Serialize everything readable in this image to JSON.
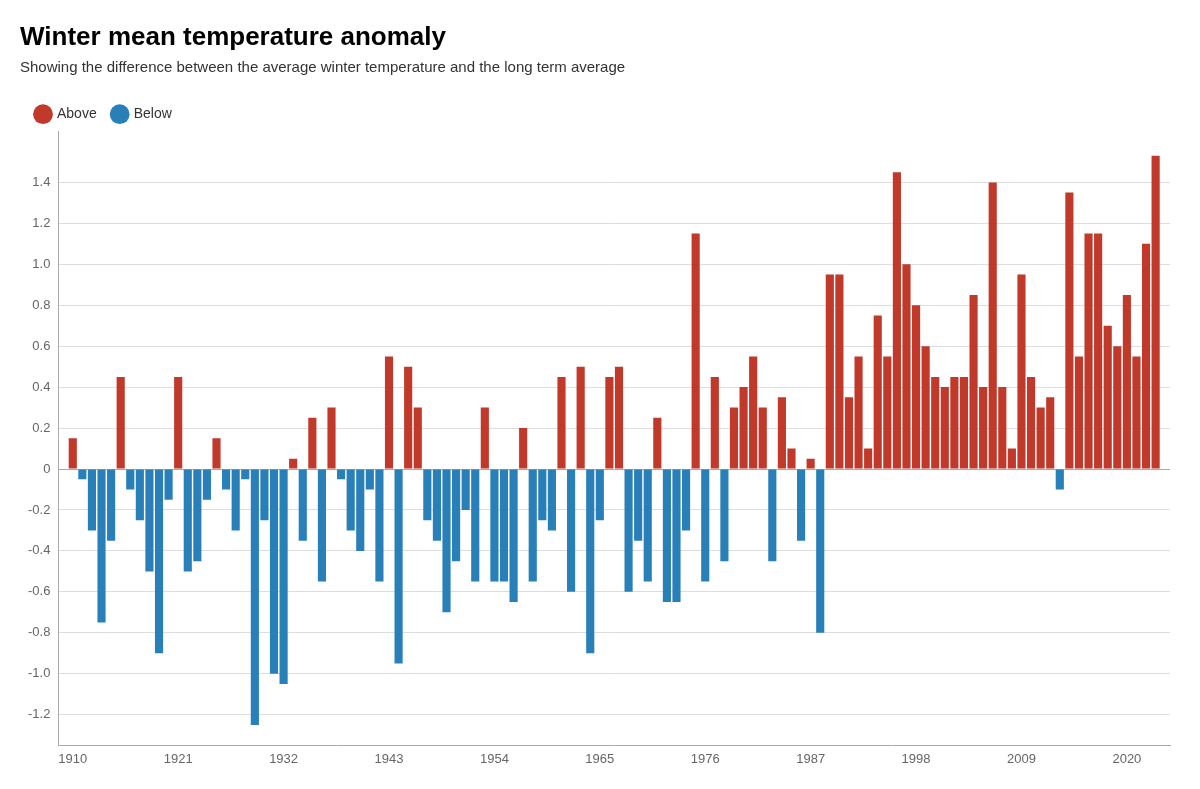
{
  "chart_data": {
    "type": "bar",
    "title": "Winter mean temperature anomaly",
    "subtitle": "Showing the difference between the average winter temperature and the long term average",
    "x": [
      1910,
      1911,
      1912,
      1913,
      1914,
      1915,
      1916,
      1917,
      1918,
      1919,
      1920,
      1921,
      1922,
      1923,
      1924,
      1925,
      1926,
      1927,
      1928,
      1929,
      1930,
      1931,
      1932,
      1933,
      1934,
      1935,
      1936,
      1937,
      1938,
      1939,
      1940,
      1941,
      1942,
      1943,
      1944,
      1945,
      1946,
      1947,
      1948,
      1949,
      1950,
      1951,
      1952,
      1953,
      1954,
      1955,
      1956,
      1957,
      1958,
      1959,
      1960,
      1961,
      1962,
      1963,
      1964,
      1965,
      1966,
      1967,
      1968,
      1969,
      1970,
      1971,
      1972,
      1973,
      1974,
      1975,
      1976,
      1977,
      1978,
      1979,
      1980,
      1981,
      1982,
      1983,
      1984,
      1985,
      1986,
      1987,
      1988,
      1989,
      1990,
      1991,
      1992,
      1993,
      1994,
      1995,
      1996,
      1997,
      1998,
      1999,
      2000,
      2001,
      2002,
      2003,
      2004,
      2005,
      2006,
      2007,
      2008,
      2009,
      2010,
      2011,
      2012,
      2013,
      2014,
      2015,
      2016,
      2017,
      2018,
      2019,
      2020,
      2021,
      2022,
      2023
    ],
    "series": [
      {
        "name": "Above",
        "color": "#c0392b",
        "values": [
          0.15,
          null,
          null,
          null,
          null,
          0.45,
          null,
          null,
          null,
          null,
          null,
          0.45,
          null,
          null,
          null,
          0.15,
          null,
          null,
          null,
          null,
          null,
          null,
          null,
          0.05,
          null,
          0.25,
          null,
          0.3,
          null,
          null,
          null,
          null,
          null,
          0.55,
          null,
          0.5,
          0.3,
          null,
          null,
          null,
          null,
          null,
          null,
          0.3,
          null,
          null,
          null,
          0.2,
          null,
          null,
          null,
          0.45,
          null,
          0.5,
          null,
          null,
          0.45,
          0.5,
          null,
          null,
          null,
          0.25,
          null,
          null,
          null,
          1.15,
          null,
          0.45,
          null,
          0.3,
          0.4,
          0.55,
          0.3,
          null,
          0.35,
          0.1,
          null,
          0.05,
          null,
          0.95,
          0.95,
          0.35,
          0.55,
          0.1,
          0.75,
          0.55,
          1.45,
          1.0,
          0.8,
          0.6,
          0.45,
          0.4,
          0.45,
          0.45,
          0.85,
          0.4,
          1.4,
          0.4,
          0.1,
          0.95,
          0.45,
          0.3,
          0.35,
          null,
          1.35,
          0.55,
          1.15,
          1.15,
          0.7,
          0.6,
          0.85,
          0.55,
          1.1,
          1.53
        ]
      },
      {
        "name": "Below",
        "color": "#2980b9",
        "values": [
          null,
          -0.05,
          -0.3,
          -0.75,
          -0.35,
          null,
          -0.1,
          -0.25,
          -0.5,
          -0.9,
          -0.15,
          null,
          -0.5,
          -0.45,
          -0.15,
          null,
          -0.1,
          -0.3,
          -0.05,
          -1.25,
          -0.25,
          -1.0,
          -1.05,
          null,
          -0.35,
          null,
          -0.55,
          null,
          -0.05,
          -0.3,
          -0.4,
          -0.1,
          -0.55,
          null,
          -0.95,
          null,
          null,
          -0.25,
          -0.35,
          -0.7,
          -0.45,
          -0.2,
          -0.55,
          null,
          -0.55,
          -0.55,
          -0.65,
          null,
          -0.55,
          -0.25,
          -0.3,
          null,
          -0.6,
          null,
          -0.9,
          -0.25,
          null,
          null,
          -0.6,
          -0.35,
          -0.55,
          null,
          -0.65,
          -0.65,
          -0.3,
          null,
          -0.55,
          null,
          -0.45,
          null,
          null,
          null,
          null,
          -0.45,
          null,
          null,
          -0.35,
          null,
          -0.8,
          null,
          null,
          null,
          null,
          null,
          null,
          null,
          null,
          null,
          null,
          null,
          null,
          null,
          null,
          null,
          null,
          null,
          null,
          null,
          null,
          null,
          null,
          null,
          null,
          -0.1,
          null,
          null,
          null,
          null,
          null,
          null,
          null,
          null,
          null,
          null
        ]
      }
    ],
    "xlim": [
      1908.5,
      2024.5
    ],
    "xticks": [
      1910,
      1921,
      1932,
      1943,
      1954,
      1965,
      1976,
      1987,
      1998,
      2009,
      2020
    ],
    "ylim": [
      -1.35,
      1.65
    ],
    "yticks": [
      -1.2,
      {
        "value": -1.0,
        "label": "-1.0"
      },
      -0.8,
      -0.6,
      -0.4,
      -0.2,
      0,
      0.2,
      0.4,
      0.6,
      0.8,
      {
        "value": 1.0,
        "label": "1.0"
      },
      1.2,
      1.4
    ],
    "grid": true,
    "legend": "upper left"
  }
}
